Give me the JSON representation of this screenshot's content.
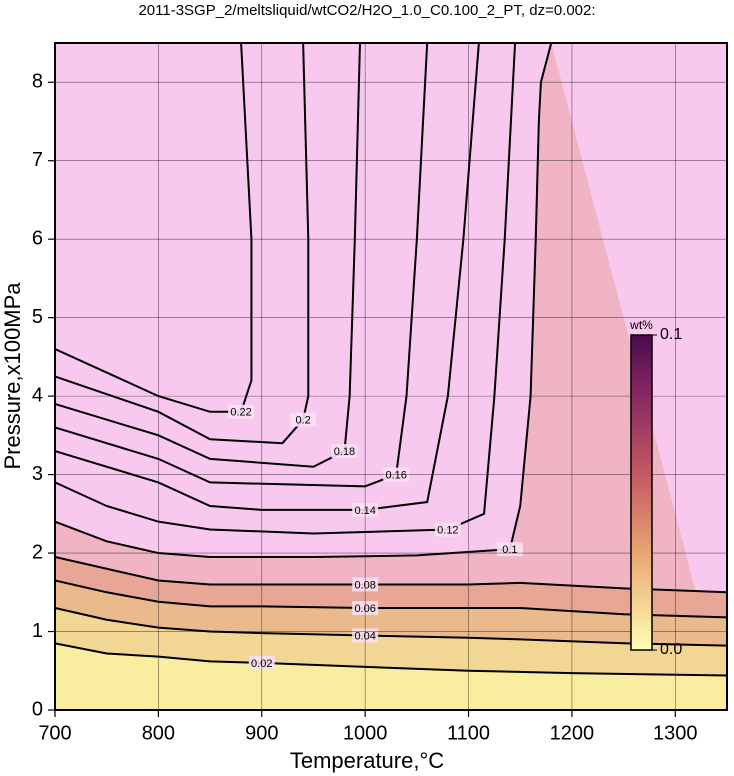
{
  "chart_data": {
    "type": "contour",
    "title": "2011-3SGP_2/meltsliquid/wtCO2/H2O_1.0_C0.100_2_PT, dz=0.002:",
    "x_label": "Temperature,°C",
    "y_label": "Pressure,x100MPa",
    "xlim": [
      700,
      1350
    ],
    "xticks": [
      700,
      800,
      900,
      1000,
      1100,
      1200,
      1300
    ],
    "ylim": [
      0,
      8.5
    ],
    "yticks": [
      0,
      1,
      2,
      3,
      4,
      5,
      6,
      7,
      8
    ],
    "grid": true,
    "background": "#f9c8ef",
    "line_color": "#000000",
    "contours": [
      {
        "level": 0.02,
        "fill": "#f9eea0",
        "x": [
          700,
          750,
          800,
          850,
          900,
          1000,
          1100,
          1200,
          1350
        ],
        "y": [
          0.85,
          0.72,
          0.68,
          0.62,
          0.6,
          0.55,
          0.5,
          0.47,
          0.44
        ]
      },
      {
        "level": 0.04,
        "fill": "#f2d694",
        "x": [
          700,
          750,
          800,
          850,
          900,
          1000,
          1100,
          1150,
          1250,
          1350
        ],
        "y": [
          1.3,
          1.15,
          1.05,
          1.0,
          0.98,
          0.95,
          0.92,
          0.9,
          0.85,
          0.82
        ]
      },
      {
        "level": 0.06,
        "fill": "#ebba8c",
        "x": [
          700,
          750,
          800,
          850,
          900,
          1000,
          1100,
          1150,
          1250,
          1350
        ],
        "y": [
          1.65,
          1.5,
          1.38,
          1.32,
          1.32,
          1.3,
          1.3,
          1.3,
          1.22,
          1.18
        ]
      },
      {
        "level": 0.08,
        "fill": "#e8a696",
        "x": [
          700,
          750,
          800,
          850,
          900,
          1000,
          1100,
          1150,
          1250,
          1350
        ],
        "y": [
          1.95,
          1.8,
          1.65,
          1.6,
          1.6,
          1.6,
          1.6,
          1.62,
          1.55,
          1.5
        ]
      },
      {
        "level": 0.1,
        "fill": "#f0b4c4",
        "x": [
          700,
          750,
          800,
          850,
          950,
          1050,
          1140,
          1150,
          1160,
          1165,
          1168,
          1170,
          1180
        ],
        "y": [
          2.4,
          2.15,
          2.0,
          1.95,
          1.95,
          1.97,
          2.05,
          2.6,
          4,
          6,
          7.5,
          8.0,
          8.5
        ]
      },
      {
        "level": 0.12,
        "x": [
          700,
          750,
          800,
          850,
          950,
          1080,
          1115,
          1125,
          1135,
          1145
        ],
        "y": [
          2.9,
          2.6,
          2.4,
          2.3,
          2.25,
          2.3,
          2.5,
          4,
          6,
          8.5
        ]
      },
      {
        "level": 0.14,
        "x": [
          700,
          800,
          850,
          900,
          1000,
          1060,
          1080,
          1095,
          1110
        ],
        "y": [
          3.3,
          2.9,
          2.6,
          2.55,
          2.55,
          2.65,
          4,
          6,
          8.5
        ]
      },
      {
        "level": 0.16,
        "x": [
          700,
          800,
          850,
          1000,
          1030,
          1040,
          1050,
          1060
        ],
        "y": [
          3.6,
          3.2,
          2.9,
          2.85,
          3.0,
          4,
          6,
          8.5
        ]
      },
      {
        "level": 0.18,
        "x": [
          700,
          800,
          850,
          950,
          980,
          985,
          990,
          995
        ],
        "y": [
          3.9,
          3.5,
          3.2,
          3.1,
          3.3,
          4,
          6,
          8.5
        ]
      },
      {
        "level": 0.2,
        "x": [
          700,
          800,
          850,
          920,
          940,
          945,
          945,
          940
        ],
        "y": [
          4.25,
          3.8,
          3.45,
          3.4,
          3.7,
          4,
          6,
          8.5
        ]
      },
      {
        "level": 0.22,
        "x": [
          700,
          800,
          850,
          880,
          890,
          890,
          880
        ],
        "y": [
          4.6,
          4.0,
          3.8,
          3.8,
          4.2,
          6,
          8.5
        ]
      }
    ],
    "colorbar": {
      "label": "wt%",
      "clim": [
        0,
        0.1
      ],
      "ticks": [
        {
          "value": 0.1,
          "label": "0.1"
        },
        {
          "value": 0,
          "label": "0.0"
        }
      ]
    }
  }
}
